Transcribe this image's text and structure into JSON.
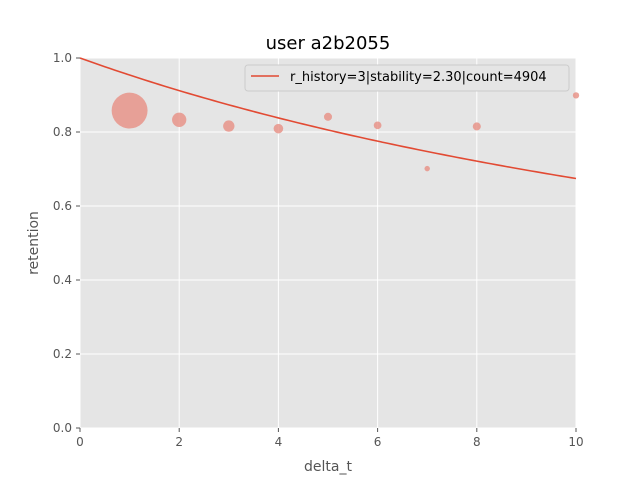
{
  "chart_data": {
    "type": "scatter",
    "title": "user a2b2055",
    "xlabel": "delta_t",
    "ylabel": "retention",
    "xlim": [
      0,
      10
    ],
    "ylim": [
      0,
      1.0
    ],
    "xticks": [
      "0",
      "2",
      "4",
      "6",
      "8",
      "10"
    ],
    "yticks": [
      "0.0",
      "0.2",
      "0.4",
      "0.6",
      "0.8",
      "1.0"
    ],
    "grid": true,
    "legend_position": "top-right",
    "background_color": "#e5e5e5",
    "grid_color": "#ffffff",
    "series": [
      {
        "type": "scatter",
        "color": "#e8948a",
        "x": [
          1,
          2,
          3,
          4,
          5,
          6,
          7,
          8,
          10
        ],
        "y": [
          0.858,
          0.833,
          0.816,
          0.809,
          0.841,
          0.818,
          0.701,
          0.815,
          0.899
        ],
        "relative_size": [
          2400,
          380,
          240,
          170,
          120,
          110,
          55,
          120,
          75
        ]
      },
      {
        "type": "line",
        "name": "r_history=3|stability=2.30|count=4904",
        "color": "#e24a33",
        "stability": 2.3,
        "x": [
          0,
          10
        ],
        "y": [
          1.0,
          0.704
        ]
      }
    ]
  }
}
